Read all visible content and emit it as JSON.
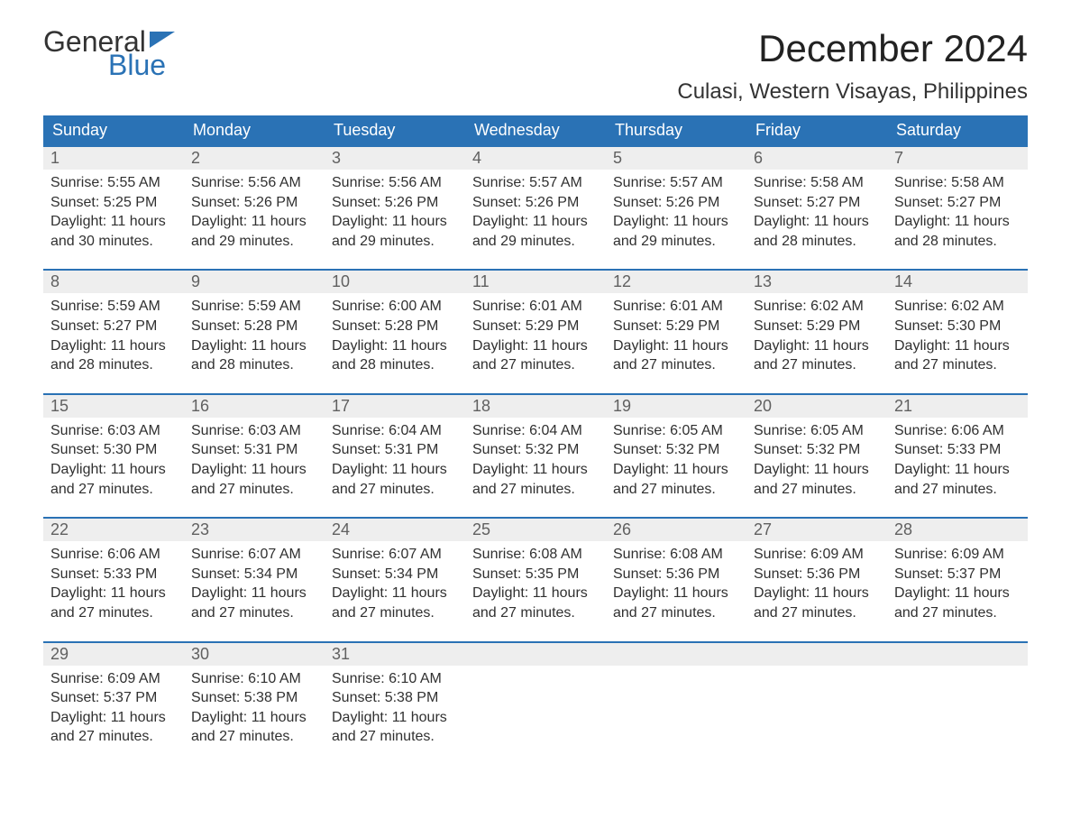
{
  "logo": {
    "line1": "General",
    "line2": "Blue"
  },
  "title": "December 2024",
  "location": "Culasi, Western Visayas, Philippines",
  "colors": {
    "header_bg": "#2a72b5",
    "header_text": "#ffffff",
    "daynum_bg": "#eeeeee",
    "daynum_border": "#2a72b5",
    "body_text": "#303030"
  },
  "weekdays": [
    "Sunday",
    "Monday",
    "Tuesday",
    "Wednesday",
    "Thursday",
    "Friday",
    "Saturday"
  ],
  "weeks": [
    [
      {
        "num": "1",
        "sunrise": "Sunrise: 5:55 AM",
        "sunset": "Sunset: 5:25 PM",
        "daylight1": "Daylight: 11 hours",
        "daylight2": "and 30 minutes."
      },
      {
        "num": "2",
        "sunrise": "Sunrise: 5:56 AM",
        "sunset": "Sunset: 5:26 PM",
        "daylight1": "Daylight: 11 hours",
        "daylight2": "and 29 minutes."
      },
      {
        "num": "3",
        "sunrise": "Sunrise: 5:56 AM",
        "sunset": "Sunset: 5:26 PM",
        "daylight1": "Daylight: 11 hours",
        "daylight2": "and 29 minutes."
      },
      {
        "num": "4",
        "sunrise": "Sunrise: 5:57 AM",
        "sunset": "Sunset: 5:26 PM",
        "daylight1": "Daylight: 11 hours",
        "daylight2": "and 29 minutes."
      },
      {
        "num": "5",
        "sunrise": "Sunrise: 5:57 AM",
        "sunset": "Sunset: 5:26 PM",
        "daylight1": "Daylight: 11 hours",
        "daylight2": "and 29 minutes."
      },
      {
        "num": "6",
        "sunrise": "Sunrise: 5:58 AM",
        "sunset": "Sunset: 5:27 PM",
        "daylight1": "Daylight: 11 hours",
        "daylight2": "and 28 minutes."
      },
      {
        "num": "7",
        "sunrise": "Sunrise: 5:58 AM",
        "sunset": "Sunset: 5:27 PM",
        "daylight1": "Daylight: 11 hours",
        "daylight2": "and 28 minutes."
      }
    ],
    [
      {
        "num": "8",
        "sunrise": "Sunrise: 5:59 AM",
        "sunset": "Sunset: 5:27 PM",
        "daylight1": "Daylight: 11 hours",
        "daylight2": "and 28 minutes."
      },
      {
        "num": "9",
        "sunrise": "Sunrise: 5:59 AM",
        "sunset": "Sunset: 5:28 PM",
        "daylight1": "Daylight: 11 hours",
        "daylight2": "and 28 minutes."
      },
      {
        "num": "10",
        "sunrise": "Sunrise: 6:00 AM",
        "sunset": "Sunset: 5:28 PM",
        "daylight1": "Daylight: 11 hours",
        "daylight2": "and 28 minutes."
      },
      {
        "num": "11",
        "sunrise": "Sunrise: 6:01 AM",
        "sunset": "Sunset: 5:29 PM",
        "daylight1": "Daylight: 11 hours",
        "daylight2": "and 27 minutes."
      },
      {
        "num": "12",
        "sunrise": "Sunrise: 6:01 AM",
        "sunset": "Sunset: 5:29 PM",
        "daylight1": "Daylight: 11 hours",
        "daylight2": "and 27 minutes."
      },
      {
        "num": "13",
        "sunrise": "Sunrise: 6:02 AM",
        "sunset": "Sunset: 5:29 PM",
        "daylight1": "Daylight: 11 hours",
        "daylight2": "and 27 minutes."
      },
      {
        "num": "14",
        "sunrise": "Sunrise: 6:02 AM",
        "sunset": "Sunset: 5:30 PM",
        "daylight1": "Daylight: 11 hours",
        "daylight2": "and 27 minutes."
      }
    ],
    [
      {
        "num": "15",
        "sunrise": "Sunrise: 6:03 AM",
        "sunset": "Sunset: 5:30 PM",
        "daylight1": "Daylight: 11 hours",
        "daylight2": "and 27 minutes."
      },
      {
        "num": "16",
        "sunrise": "Sunrise: 6:03 AM",
        "sunset": "Sunset: 5:31 PM",
        "daylight1": "Daylight: 11 hours",
        "daylight2": "and 27 minutes."
      },
      {
        "num": "17",
        "sunrise": "Sunrise: 6:04 AM",
        "sunset": "Sunset: 5:31 PM",
        "daylight1": "Daylight: 11 hours",
        "daylight2": "and 27 minutes."
      },
      {
        "num": "18",
        "sunrise": "Sunrise: 6:04 AM",
        "sunset": "Sunset: 5:32 PM",
        "daylight1": "Daylight: 11 hours",
        "daylight2": "and 27 minutes."
      },
      {
        "num": "19",
        "sunrise": "Sunrise: 6:05 AM",
        "sunset": "Sunset: 5:32 PM",
        "daylight1": "Daylight: 11 hours",
        "daylight2": "and 27 minutes."
      },
      {
        "num": "20",
        "sunrise": "Sunrise: 6:05 AM",
        "sunset": "Sunset: 5:32 PM",
        "daylight1": "Daylight: 11 hours",
        "daylight2": "and 27 minutes."
      },
      {
        "num": "21",
        "sunrise": "Sunrise: 6:06 AM",
        "sunset": "Sunset: 5:33 PM",
        "daylight1": "Daylight: 11 hours",
        "daylight2": "and 27 minutes."
      }
    ],
    [
      {
        "num": "22",
        "sunrise": "Sunrise: 6:06 AM",
        "sunset": "Sunset: 5:33 PM",
        "daylight1": "Daylight: 11 hours",
        "daylight2": "and 27 minutes."
      },
      {
        "num": "23",
        "sunrise": "Sunrise: 6:07 AM",
        "sunset": "Sunset: 5:34 PM",
        "daylight1": "Daylight: 11 hours",
        "daylight2": "and 27 minutes."
      },
      {
        "num": "24",
        "sunrise": "Sunrise: 6:07 AM",
        "sunset": "Sunset: 5:34 PM",
        "daylight1": "Daylight: 11 hours",
        "daylight2": "and 27 minutes."
      },
      {
        "num": "25",
        "sunrise": "Sunrise: 6:08 AM",
        "sunset": "Sunset: 5:35 PM",
        "daylight1": "Daylight: 11 hours",
        "daylight2": "and 27 minutes."
      },
      {
        "num": "26",
        "sunrise": "Sunrise: 6:08 AM",
        "sunset": "Sunset: 5:36 PM",
        "daylight1": "Daylight: 11 hours",
        "daylight2": "and 27 minutes."
      },
      {
        "num": "27",
        "sunrise": "Sunrise: 6:09 AM",
        "sunset": "Sunset: 5:36 PM",
        "daylight1": "Daylight: 11 hours",
        "daylight2": "and 27 minutes."
      },
      {
        "num": "28",
        "sunrise": "Sunrise: 6:09 AM",
        "sunset": "Sunset: 5:37 PM",
        "daylight1": "Daylight: 11 hours",
        "daylight2": "and 27 minutes."
      }
    ],
    [
      {
        "num": "29",
        "sunrise": "Sunrise: 6:09 AM",
        "sunset": "Sunset: 5:37 PM",
        "daylight1": "Daylight: 11 hours",
        "daylight2": "and 27 minutes."
      },
      {
        "num": "30",
        "sunrise": "Sunrise: 6:10 AM",
        "sunset": "Sunset: 5:38 PM",
        "daylight1": "Daylight: 11 hours",
        "daylight2": "and 27 minutes."
      },
      {
        "num": "31",
        "sunrise": "Sunrise: 6:10 AM",
        "sunset": "Sunset: 5:38 PM",
        "daylight1": "Daylight: 11 hours",
        "daylight2": "and 27 minutes."
      },
      null,
      null,
      null,
      null
    ]
  ]
}
